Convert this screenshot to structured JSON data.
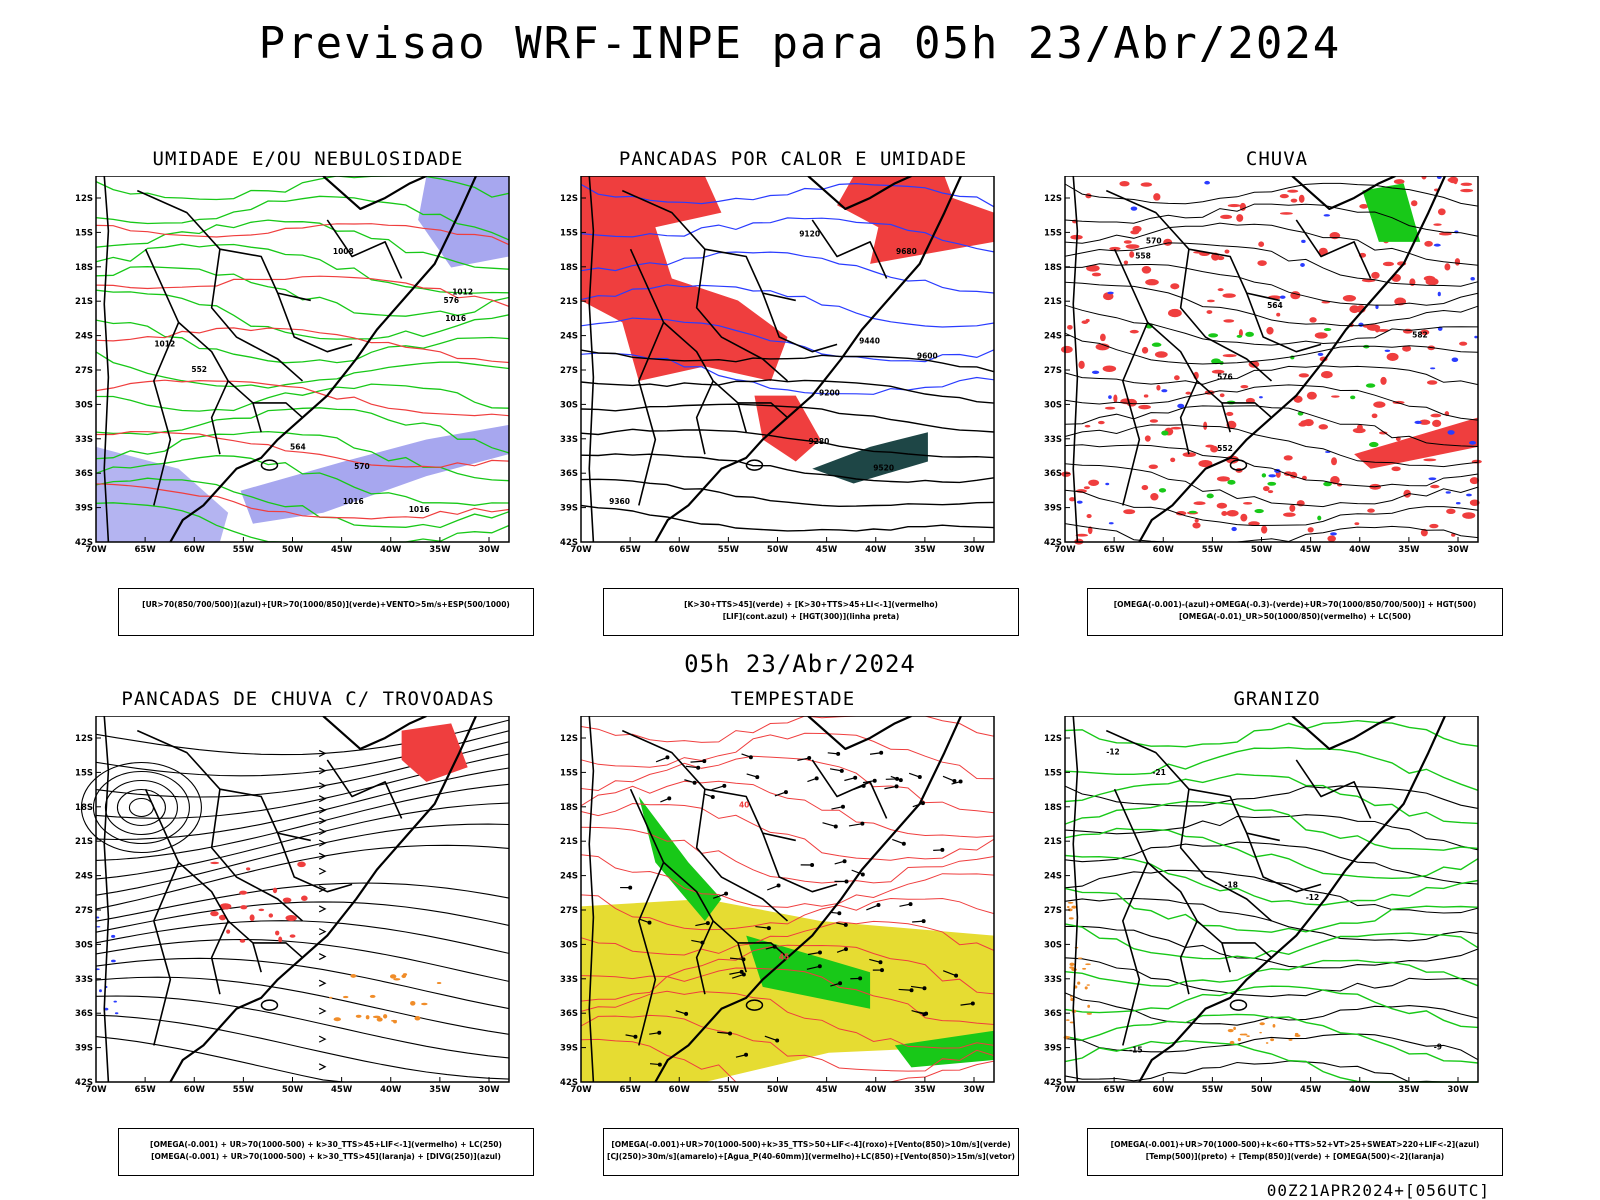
{
  "title": "Previsao WRF-INPE  para 05h 23/Abr/2024",
  "subtitle": "05h 23/Abr/2024",
  "footer": "00Z21APR2024+[056UTC]",
  "axes": {
    "lat_labels": [
      "12S",
      "15S",
      "18S",
      "21S",
      "24S",
      "27S",
      "30S",
      "33S",
      "36S",
      "39S",
      "42S"
    ],
    "lon_labels": [
      "70W",
      "65W",
      "60W",
      "55W",
      "50W",
      "45W",
      "40W",
      "35W",
      "30W"
    ]
  },
  "colors": {
    "red": "#ef3e3e",
    "green": "#18c818",
    "blue": "#2a3cff",
    "lavender": "#a7a7ef",
    "yellow": "#e6dc32",
    "orange": "#f08c28",
    "darkteal": "#1e4646"
  },
  "panels": [
    {
      "id": "umidade",
      "title": "UMIDADE E/OU NEBULOSIDADE",
      "legend": [
        "[UR>70(850/700/500)](azul)+[UR>70(1000/850)](verde)+VENTO>5m/s+ESP(500/1000)"
      ],
      "contour_labels": [
        "1012",
        "1012",
        "1016",
        "1016",
        "1008",
        "576",
        "570",
        "564",
        "552",
        "1016"
      ]
    },
    {
      "id": "pancadas_calor",
      "title": "PANCADAS POR CALOR E UMIDADE",
      "legend": [
        "[K>30+TTS>45](verde) + [K>30+TTS>45+LI<-1](vermelho)",
        "[LIF](cont.azul) + [HGT(300)](linha preta)"
      ],
      "contour_labels": [
        "9680",
        "9600",
        "9520",
        "9440",
        "9360",
        "9280",
        "9200",
        "9120"
      ]
    },
    {
      "id": "chuva",
      "title": "CHUVA",
      "legend": [
        "[OMEGA(-0.001)-(azul)+OMEGA(-0.3)-(verde)+UR>70(1000/850/700/500)] + HGT(500)",
        "[OMEGA(-0.01)_UR>50(1000/850)(vermelho) + LC(500)"
      ],
      "contour_labels": [
        "582",
        "576",
        "570",
        "564",
        "558",
        "552"
      ]
    },
    {
      "id": "trovoadas",
      "title": "PANCADAS DE CHUVA C/ TROVOADAS",
      "legend": [
        "[OMEGA(-0.001) + UR>70(1000-500) + k>30_TTS>45+LIF<-1](vermelho) + LC(250)",
        "[OMEGA(-0.001) + UR>70(1000-500) + k>30_TTS>45](laranja) + [DIVG(250)](azul)"
      ],
      "contour_labels": []
    },
    {
      "id": "tempestade",
      "title": "TEMPESTADE",
      "legend": [
        "[OMEGA(-0.001)+UR>70(1000-500)+k>35_TTS>50+LIF<-4](roxo)+[Vento(850)>10m/s](verde)",
        "[CJ(250)>30m/s](amarelo)+[Agua_P(40-60mm)](vermelho)+LC(850)+[Vento(850)>15m/s](vetor)"
      ],
      "contour_labels": [
        "40",
        "45"
      ]
    },
    {
      "id": "granizo",
      "title": "GRANIZO",
      "legend": [
        "[OMEGA(-0.001)+UR>70(1000-500)+k<60+TTS>52+VT>25+SWEAT>220+LIF<-2](azul)",
        "[Temp(500)](preto) + [Temp(850)](verde) + [OMEGA(500)<-2](laranja)"
      ],
      "contour_labels": [
        "-12",
        "-12",
        "-15",
        "-18",
        "-21",
        "-9"
      ]
    }
  ]
}
